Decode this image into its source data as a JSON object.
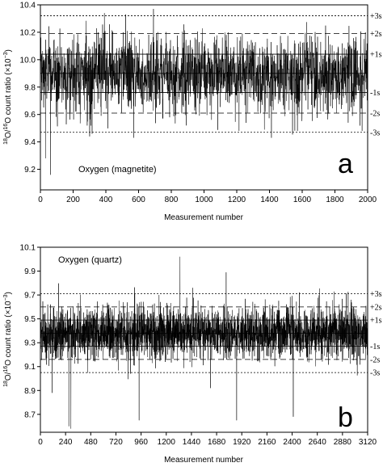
{
  "chart_data": [
    {
      "type": "line",
      "panel_label": "a",
      "annotation": "Oxygen (magnetite)",
      "xlabel": "Measurement number",
      "ylabel": "18O/16O count ratio (×10⁻³)",
      "ylabel_parts": {
        "sup1": "18",
        "main1": "O/",
        "sup2": "16",
        "main2": "O count ratio (×10",
        "sup3": "−3",
        "main3": ")"
      },
      "xlim": [
        0,
        2000
      ],
      "ylim": [
        9.05,
        10.4
      ],
      "x_ticks": [
        0,
        200,
        400,
        600,
        800,
        1000,
        1200,
        1400,
        1600,
        1800,
        2000
      ],
      "x_tick_labels": [
        "0",
        "200",
        "400",
        "600",
        "800",
        "1000",
        "1200",
        "1400",
        "1600",
        "1800",
        "2000"
      ],
      "y_ticks": [
        9.2,
        9.4,
        9.6,
        9.8,
        10.0,
        10.2,
        10.4
      ],
      "y_tick_labels": [
        "9.2",
        "9.4",
        "9.6",
        "9.8",
        "10.0",
        "10.2",
        "10.4"
      ],
      "mean": 9.9,
      "sigma_lines": [
        {
          "label": "+3s",
          "value": 10.32,
          "style": "dotted"
        },
        {
          "label": "+2s",
          "value": 10.19,
          "style": "dashed"
        },
        {
          "label": "+1s",
          "value": 10.04,
          "style": "solid"
        },
        {
          "label": "-1s",
          "value": 9.76,
          "style": "solid"
        },
        {
          "label": "-2s",
          "value": 9.61,
          "style": "dashed"
        },
        {
          "label": "-3s",
          "value": 9.47,
          "style": "dotted"
        }
      ],
      "series": [
        {
          "n_points": 2000,
          "mean": 9.9,
          "sigma": 0.14,
          "outliers": [
            [
              30,
              9.28
            ],
            [
              60,
              9.16
            ],
            [
              300,
              9.44
            ],
            [
              390,
              10.34
            ],
            [
              520,
              10.33
            ],
            [
              570,
              9.43
            ],
            [
              690,
              10.37
            ],
            [
              890,
              9.52
            ],
            [
              1570,
              9.48
            ],
            [
              1880,
              9.54
            ]
          ]
        }
      ]
    },
    {
      "type": "line",
      "panel_label": "b",
      "annotation": "Oxygen (quartz)",
      "xlabel": "Measurement number",
      "ylabel": "18O/16O count ratio (×10⁻³)",
      "ylabel_parts": {
        "sup1": "18",
        "main1": "O/",
        "sup2": "16",
        "main2": "O count ratio (×10",
        "sup3": "−3",
        "main3": ")"
      },
      "xlim": [
        0,
        3120
      ],
      "ylim": [
        8.55,
        10.1
      ],
      "x_ticks": [
        0,
        240,
        480,
        720,
        960,
        1200,
        1440,
        1680,
        1920,
        2160,
        2400,
        2640,
        2880,
        3120
      ],
      "x_tick_labels": [
        "0",
        "240",
        "480",
        "720",
        "960",
        "1200",
        "1440",
        "1680",
        "1920",
        "2160",
        "2400",
        "2640",
        "2880",
        "3120"
      ],
      "y_ticks": [
        8.7,
        8.9,
        9.1,
        9.3,
        9.5,
        9.7,
        9.9,
        10.1
      ],
      "y_tick_labels": [
        "8.7",
        "8.9",
        "9.1",
        "9.3",
        "9.5",
        "9.7",
        "9.9",
        "10.1"
      ],
      "mean": 9.38,
      "sigma_lines": [
        {
          "label": "+3s",
          "value": 9.71,
          "style": "dotted"
        },
        {
          "label": "+2s",
          "value": 9.6,
          "style": "dashed"
        },
        {
          "label": "+1s",
          "value": 9.49,
          "style": "solid"
        },
        {
          "label": "-1s",
          "value": 9.27,
          "style": "solid"
        },
        {
          "label": "-2s",
          "value": 9.16,
          "style": "dashed"
        },
        {
          "label": "-3s",
          "value": 9.05,
          "style": "dotted"
        }
      ],
      "series": [
        {
          "n_points": 3120,
          "mean": 9.38,
          "sigma": 0.11,
          "outliers": [
            [
              110,
              8.88
            ],
            [
              270,
              8.6
            ],
            [
              290,
              8.58
            ],
            [
              940,
              8.65
            ],
            [
              1130,
              9.7
            ],
            [
              1330,
              10.02
            ],
            [
              1450,
              9.76
            ],
            [
              1620,
              8.92
            ],
            [
              1770,
              9.89
            ],
            [
              1870,
              8.65
            ],
            [
              2410,
              8.68
            ],
            [
              2960,
              9.66
            ]
          ]
        }
      ]
    }
  ]
}
